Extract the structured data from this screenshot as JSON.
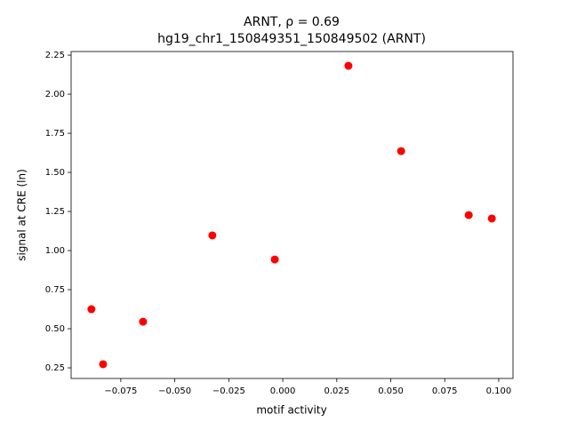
{
  "chart_data": {
    "type": "scatter",
    "title": "ARNT, ρ = 0.69",
    "subtitle": "hg19_chr1_150849351_150849502 (ARNT)",
    "x_label": "motif activity",
    "y_label": "signal at CRE (ln)",
    "color": "#ff0000",
    "x": [
      -0.0886,
      -0.0832,
      -0.0647,
      -0.0326,
      -0.0037,
      0.0304,
      0.0548,
      0.0861,
      0.0968
    ],
    "values": [
      0.625,
      0.273,
      0.545,
      1.097,
      0.943,
      2.182,
      1.636,
      1.227,
      1.205
    ],
    "xlim": [
      -0.098,
      0.1066
    ],
    "ylim": [
      0.182,
      2.273
    ],
    "xticks": [
      {
        "value": -0.075,
        "label": "−0.075"
      },
      {
        "value": -0.05,
        "label": "−0.050"
      },
      {
        "value": -0.025,
        "label": "−0.025"
      },
      {
        "value": 0,
        "label": "0.000"
      },
      0.025,
      {
        "value": 0.05,
        "label": "0.050"
      },
      0.075,
      {
        "value": 0.1,
        "label": "0.100"
      }
    ],
    "yticks": [
      0.25,
      {
        "value": 0.5,
        "label": "0.50"
      },
      0.75,
      {
        "value": 1,
        "label": "1.00"
      },
      1.25,
      {
        "value": 1.5,
        "label": "1.50"
      },
      1.75,
      {
        "value": 2,
        "label": "2.00"
      },
      2.25
    ],
    "grid": false
  }
}
